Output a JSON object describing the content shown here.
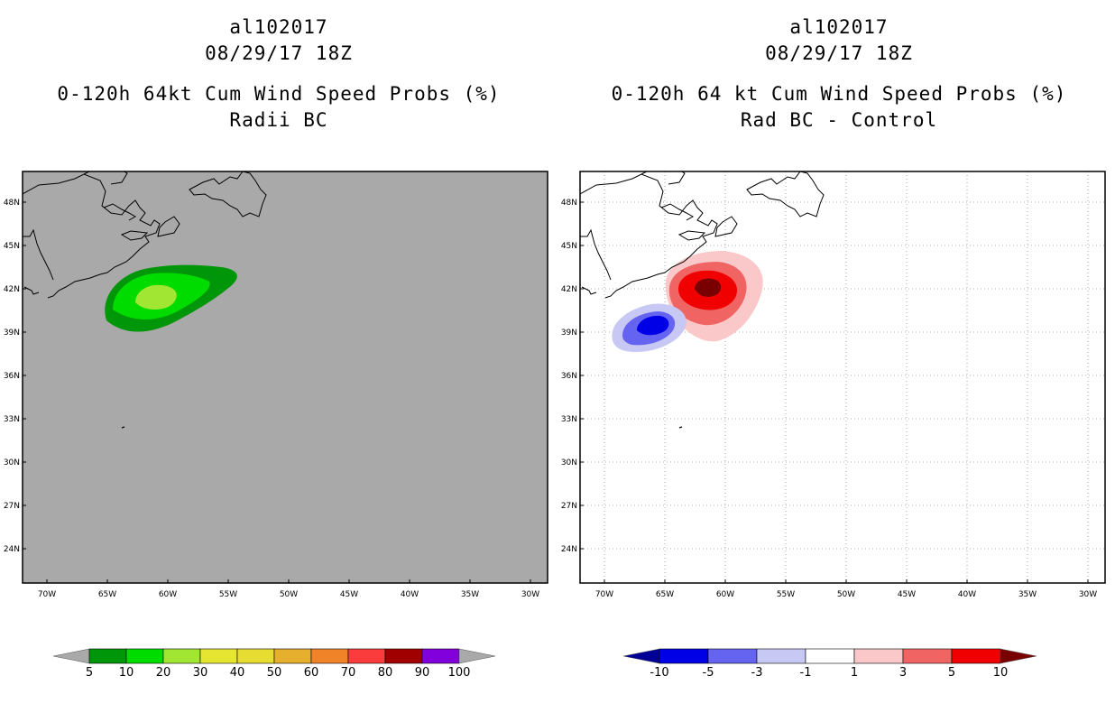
{
  "left": {
    "storm_id": "al102017",
    "datetime": "08/29/17 18Z",
    "title": "0-120h 64kt Cum Wind Speed Probs (%)",
    "subtitle": "Radii BC",
    "background_color": "#a9a9a9",
    "lat_labels": [
      "48N",
      "45N",
      "42N",
      "39N",
      "36N",
      "33N",
      "30N",
      "27N",
      "24N"
    ],
    "lon_labels": [
      "70W",
      "65W",
      "60W",
      "55W",
      "50W",
      "45W",
      "40W",
      "35W",
      "30W"
    ],
    "colorbar": {
      "colors": [
        "#00960a",
        "#00dc00",
        "#a0e632",
        "#e6e632",
        "#e6dc32",
        "#e6af2d",
        "#f08228",
        "#fa3c3c",
        "#a00000",
        "#8200dc"
      ],
      "labels": [
        "5",
        "10",
        "20",
        "30",
        "40",
        "50",
        "60",
        "70",
        "80",
        "90",
        "100"
      ],
      "end_color": "#a9a9a9"
    }
  },
  "right": {
    "storm_id": "al102017",
    "datetime": "08/29/17 18Z",
    "title": "0-120h 64 kt Cum Wind Speed Probs (%)",
    "subtitle": "Rad BC - Control",
    "background_color": "#ffffff",
    "lat_labels": [
      "48N",
      "45N",
      "42N",
      "39N",
      "36N",
      "33N",
      "30N",
      "27N",
      "24N"
    ],
    "lon_labels": [
      "70W",
      "65W",
      "60W",
      "55W",
      "50W",
      "45W",
      "40W",
      "35W",
      "30W"
    ],
    "colorbar": {
      "colors": [
        "#0000e6",
        "#6464f0",
        "#c8c8f5",
        "#ffffff",
        "#fac8c8",
        "#f06464",
        "#f00000"
      ],
      "labels": [
        "-10",
        "-5",
        "-3",
        "-1",
        "1",
        "3",
        "5",
        "10"
      ],
      "low_end_color": "#000096",
      "high_end_color": "#780000"
    }
  }
}
